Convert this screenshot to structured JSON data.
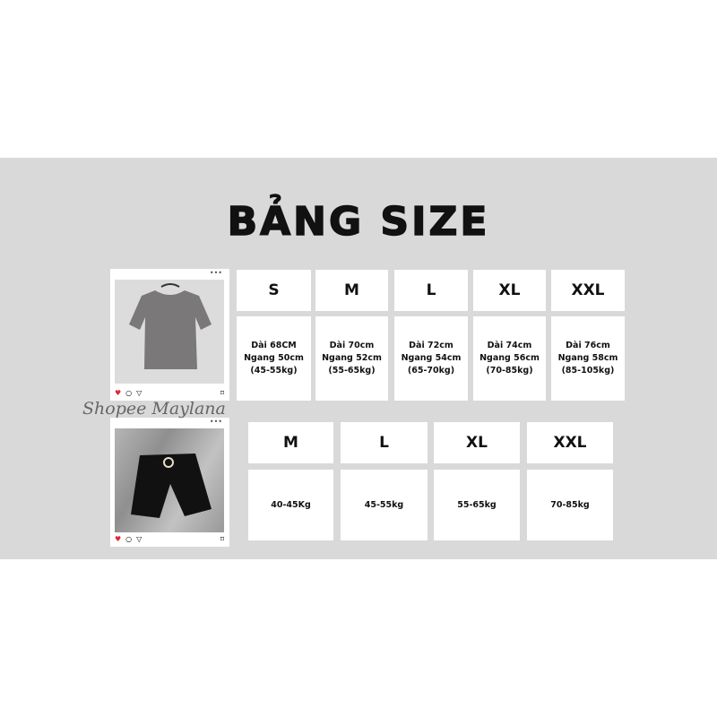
{
  "title": "BẢNG SIZE",
  "watermark": "Shopee Maylana",
  "shirt_table": {
    "sizes": [
      "S",
      "M",
      "L",
      "XL",
      "XXL"
    ],
    "details": [
      "Dài 68CM\nNgang 50cm\n(45-55kg)",
      "Dài 70cm\nNgang 52cm\n(55-65kg)",
      "Dài 72cm\nNgang 54cm\n(65-70kg)",
      "Dài 74cm\nNgang 56cm\n(70-85kg)",
      "Dài 76cm\nNgang 58cm\n(85-105kg)"
    ]
  },
  "shorts_table": {
    "sizes": [
      "M",
      "L",
      "XL",
      "XXL"
    ],
    "details": [
      "40-45Kg",
      "45-55kg",
      "55-65kg",
      "70-85kg"
    ]
  },
  "colors": {
    "band": "#d9d9d9",
    "shirt": "#7a7878",
    "shorts": "#111111",
    "heart": "#e0243a"
  }
}
